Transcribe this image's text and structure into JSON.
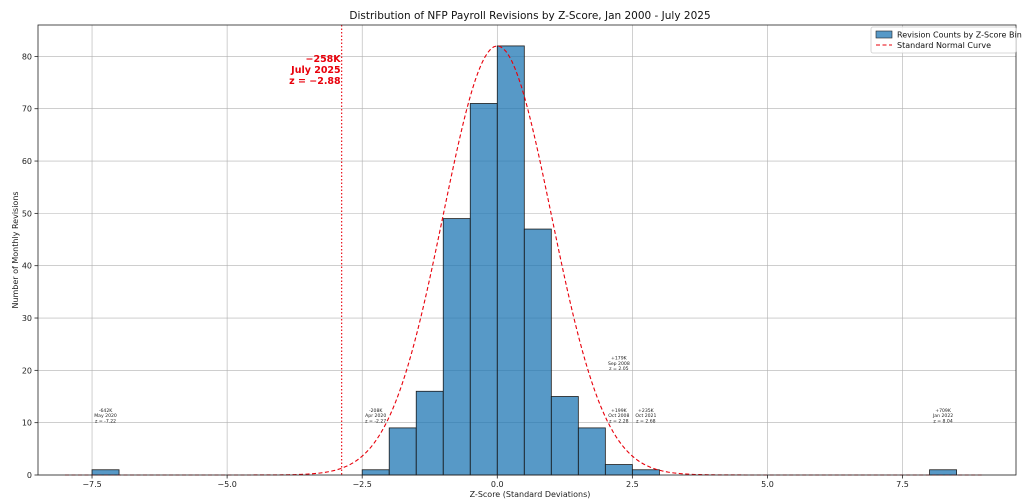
{
  "chart_data": {
    "type": "bar",
    "title": "Distribution of NFP Payroll Revisions by Z-Score, Jan 2000 - July 2025",
    "xlabel": "Z-Score (Standard Deviations)",
    "ylabel": "Number of Monthly Revisions",
    "xlim": [
      -8.5,
      9.6
    ],
    "ylim": [
      0,
      86
    ],
    "xticks": [
      -7.5,
      -5.0,
      -2.5,
      0.0,
      2.5,
      5.0,
      7.5
    ],
    "xtick_labels": [
      "−7.5",
      "−5.0",
      "−2.5",
      "0.0",
      "2.5",
      "5.0",
      "7.5"
    ],
    "yticks": [
      0,
      10,
      20,
      30,
      40,
      50,
      60,
      70,
      80
    ],
    "grid": true,
    "legend_position": "top-right",
    "bins": [
      {
        "x0": -7.5,
        "x1": -7.0,
        "count": 1
      },
      {
        "x0": -2.5,
        "x1": -2.0,
        "count": 1
      },
      {
        "x0": -2.0,
        "x1": -1.5,
        "count": 9
      },
      {
        "x0": -1.5,
        "x1": -1.0,
        "count": 16
      },
      {
        "x0": -1.0,
        "x1": -0.5,
        "count": 49
      },
      {
        "x0": -0.5,
        "x1": 0.0,
        "count": 71
      },
      {
        "x0": 0.0,
        "x1": 0.5,
        "count": 82
      },
      {
        "x0": 0.5,
        "x1": 1.0,
        "count": 47
      },
      {
        "x0": 1.0,
        "x1": 1.5,
        "count": 15
      },
      {
        "x0": 1.5,
        "x1": 2.0,
        "count": 9
      },
      {
        "x0": 2.0,
        "x1": 2.5,
        "count": 2
      },
      {
        "x0": 2.5,
        "x1": 3.0,
        "count": 1
      },
      {
        "x0": 8.0,
        "x1": 8.5,
        "count": 1
      }
    ],
    "series": [
      {
        "name": "Revision Counts by Z-Score Bin",
        "type": "histogram",
        "color": "#1f77b4"
      },
      {
        "name": "Standard Normal Curve",
        "type": "line",
        "color": "#e8000b",
        "style": "dashed",
        "peak": 82,
        "mean": 0,
        "sd": 1
      }
    ],
    "reference_line": {
      "x": -2.88,
      "color": "#e8000b",
      "style": "dotted"
    },
    "highlight_annotation": {
      "x": -2.88,
      "y": 77,
      "lines": [
        "−258K",
        "July 2025",
        "z = −2.88"
      ]
    },
    "annotations": [
      {
        "x": -7.25,
        "y": 11,
        "lines": [
          "-642K",
          "May 2020",
          "z = -7.22"
        ]
      },
      {
        "x": -2.25,
        "y": 11,
        "lines": [
          "-208K",
          "Apr 2020",
          "z = -2.27"
        ]
      },
      {
        "x": 2.25,
        "y": 21,
        "lines": [
          "+179K",
          "Sep 2008",
          "z = 2.05"
        ]
      },
      {
        "x": 2.25,
        "y": 11,
        "lines": [
          "+199K",
          "Oct 2008",
          "z = 2.28"
        ]
      },
      {
        "x": 2.75,
        "y": 11,
        "lines": [
          "+235K",
          "Oct 2021",
          "z = 2.68"
        ]
      },
      {
        "x": 8.25,
        "y": 11,
        "lines": [
          "+709K",
          "Jan 2022",
          "z = 8.04"
        ]
      }
    ]
  }
}
